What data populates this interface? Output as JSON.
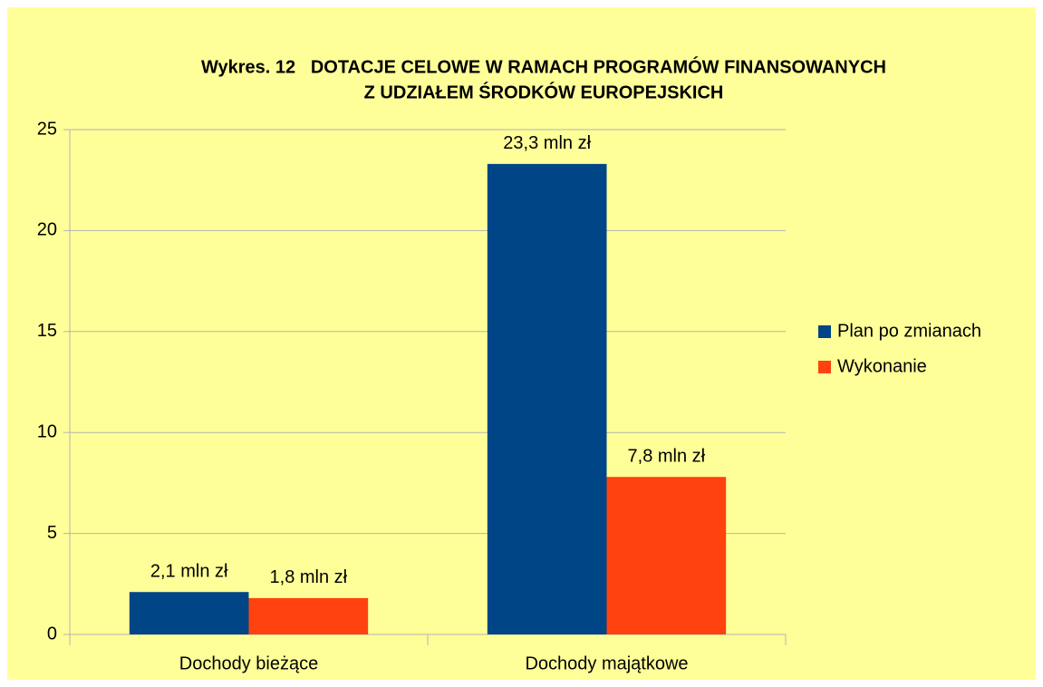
{
  "chart_data": {
    "type": "bar",
    "title": [
      "Wykres. 12   DOTACJE CELOWE W RAMACH PROGRAMÓW FINANSOWANYCH",
      "Z UDZIAŁEM ŚRODKÓW EUROPEJSKICH"
    ],
    "categories": [
      "Dochody bieżące",
      "Dochody majątkowe"
    ],
    "series": [
      {
        "name": "Plan po zmianach",
        "color": "#004586",
        "values": [
          2.1,
          23.3
        ],
        "value_labels": [
          "2,1 mln zł",
          "23,3 mln zł"
        ]
      },
      {
        "name": "Wykonanie",
        "color": "#ff420e",
        "values": [
          1.8,
          7.8
        ],
        "value_labels": [
          "1,8 mln zł",
          "7,8 mln zł"
        ]
      }
    ],
    "ylim": [
      0,
      25
    ],
    "yticks": [
      0,
      5,
      10,
      15,
      20,
      25
    ],
    "grid": true,
    "legend": "right"
  }
}
